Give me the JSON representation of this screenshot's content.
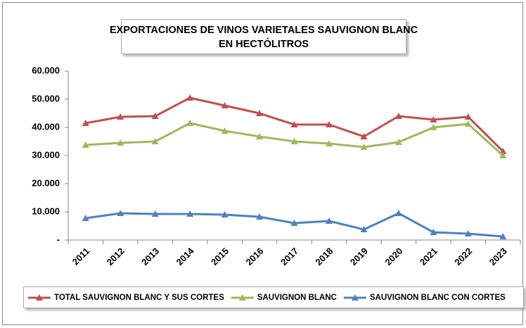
{
  "chart_data": {
    "type": "line",
    "title": [
      "EXPORTACIONES DE VINOS VARIETALES SAUVIGNON BLANC",
      "EN HECTÓLITROS"
    ],
    "categories": [
      "2011",
      "2012",
      "2013",
      "2014",
      "2015",
      "2016",
      "2017",
      "2018",
      "2019",
      "2020",
      "2021",
      "2022",
      "2023"
    ],
    "series": [
      {
        "name": "TOTAL SAUVIGNON BLANC Y SUS CORTES",
        "color": "#c0504d",
        "values": [
          41500,
          43750,
          44000,
          50500,
          47750,
          45000,
          41000,
          41000,
          36750,
          44000,
          42750,
          43750,
          31500
        ]
      },
      {
        "name": "SAUVIGNON BLANC",
        "color": "#9bbb59",
        "values": [
          33750,
          34500,
          35000,
          41500,
          38750,
          36750,
          35000,
          34250,
          33000,
          34750,
          40000,
          41250,
          30000
        ]
      },
      {
        "name": "SAUVIGNON BLANC CON CORTES",
        "color": "#4f81bd",
        "values": [
          7750,
          9500,
          9250,
          9250,
          9000,
          8250,
          6000,
          6750,
          3750,
          9500,
          2750,
          2250,
          1250
        ]
      }
    ],
    "ylim": [
      0,
      60000
    ],
    "yticks": [
      {
        "value": 0,
        "label": "-"
      },
      {
        "value": 10000,
        "label": "10.000"
      },
      {
        "value": 20000,
        "label": "20.000"
      },
      {
        "value": 30000,
        "label": "30.000"
      },
      {
        "value": 40000,
        "label": "40.000"
      },
      {
        "value": 50000,
        "label": "50.000"
      },
      {
        "value": 60000,
        "label": "60.000"
      }
    ],
    "grid": false,
    "legend": "bottom"
  }
}
